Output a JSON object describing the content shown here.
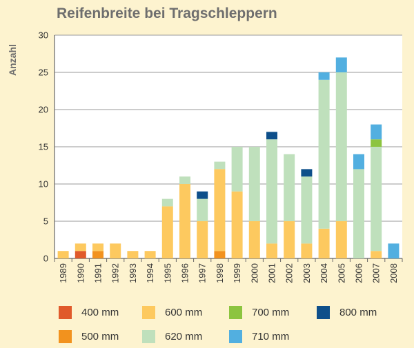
{
  "chart_data": {
    "type": "bar",
    "stacked": true,
    "title": "Reifenbreite bei Tragschleppern",
    "xlabel": "",
    "ylabel": "Anzahl",
    "ylim": [
      0,
      30
    ],
    "yticks": [
      0,
      5,
      10,
      15,
      20,
      25,
      30
    ],
    "grid": true,
    "legend_position": "bottom",
    "categories": [
      "1989",
      "1990",
      "1991",
      "1992",
      "1993",
      "1994",
      "1995",
      "1996",
      "1997",
      "1998",
      "1999",
      "2000",
      "2001",
      "2002",
      "2003",
      "2004",
      "2005",
      "2006",
      "2007",
      "2008"
    ],
    "series": [
      {
        "name": "400 mm",
        "color": "#e05a2b",
        "values": [
          0,
          1,
          0,
          0,
          0,
          0,
          0,
          0,
          0,
          0,
          0,
          0,
          0,
          0,
          0,
          0,
          0,
          0,
          0,
          0
        ]
      },
      {
        "name": "500 mm",
        "color": "#f2921e",
        "values": [
          0,
          0,
          1,
          0,
          0,
          0,
          0,
          0,
          0,
          1,
          0,
          0,
          0,
          0,
          0,
          0,
          0,
          0,
          0,
          0
        ]
      },
      {
        "name": "600 mm",
        "color": "#fdc95f",
        "values": [
          1,
          1,
          1,
          2,
          1,
          1,
          7,
          10,
          5,
          11,
          9,
          5,
          2,
          5,
          2,
          4,
          5,
          0,
          1,
          0
        ]
      },
      {
        "name": "620 mm",
        "color": "#bfe0bc",
        "values": [
          0,
          0,
          0,
          0,
          0,
          0,
          1,
          1,
          3,
          1,
          6,
          10,
          14,
          9,
          9,
          20,
          20,
          12,
          14,
          0
        ]
      },
      {
        "name": "700 mm",
        "color": "#8cc43f",
        "values": [
          0,
          0,
          0,
          0,
          0,
          0,
          0,
          0,
          0,
          0,
          0,
          0,
          0,
          0,
          0,
          0,
          0,
          0,
          1,
          0
        ]
      },
      {
        "name": "710 mm",
        "color": "#52afe0",
        "values": [
          0,
          0,
          0,
          0,
          0,
          0,
          0,
          0,
          0,
          0,
          0,
          0,
          0,
          0,
          0,
          1,
          2,
          2,
          2,
          2
        ]
      },
      {
        "name": "800 mm",
        "color": "#0e4f8a",
        "values": [
          0,
          0,
          0,
          0,
          0,
          0,
          0,
          0,
          1,
          0,
          0,
          0,
          1,
          0,
          1,
          0,
          0,
          0,
          0,
          0
        ]
      }
    ]
  },
  "legend": {
    "items": [
      {
        "label": "400 mm",
        "color": "#e05a2b"
      },
      {
        "label": "600 mm",
        "color": "#fdc95f"
      },
      {
        "label": "700 mm",
        "color": "#8cc43f"
      },
      {
        "label": "800 mm",
        "color": "#0e4f8a"
      },
      {
        "label": "500 mm",
        "color": "#f2921e"
      },
      {
        "label": "620 mm",
        "color": "#bfe0bc"
      },
      {
        "label": "710 mm",
        "color": "#52afe0"
      }
    ]
  },
  "colors": {
    "background": "#fdf3cf",
    "plot_background": "#ffffff",
    "gridline": "#999999",
    "title": "#6e6e6e"
  }
}
